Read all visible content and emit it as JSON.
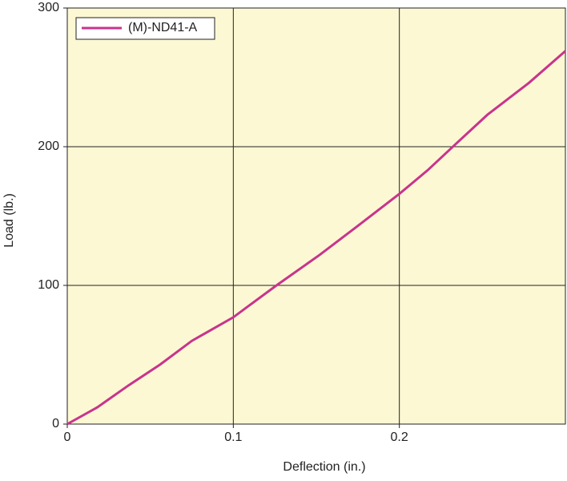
{
  "chart_data": {
    "type": "line",
    "x_label": "Deflection (in.)",
    "y_label": "Load (lb.)",
    "x": [
      0,
      0.018,
      0.037,
      0.056,
      0.075,
      0.1,
      0.109,
      0.126,
      0.152,
      0.174,
      0.2,
      0.217,
      0.234,
      0.253,
      0.278,
      0.3
    ],
    "series": [
      {
        "name": "(M)-ND41-A",
        "color": "#c8348c",
        "values": [
          0,
          12,
          28,
          43,
          60,
          77,
          85,
          100,
          122,
          142,
          166,
          183,
          202,
          223,
          246,
          269
        ]
      }
    ],
    "xlim": [
      0,
      0.3
    ],
    "xticks": [
      0,
      0.1,
      0.2
    ],
    "ylim": [
      0,
      300
    ],
    "yticks": [
      0,
      100,
      200,
      300
    ],
    "grid": true,
    "legend": "upper-left",
    "background": "#fcf8d4"
  }
}
